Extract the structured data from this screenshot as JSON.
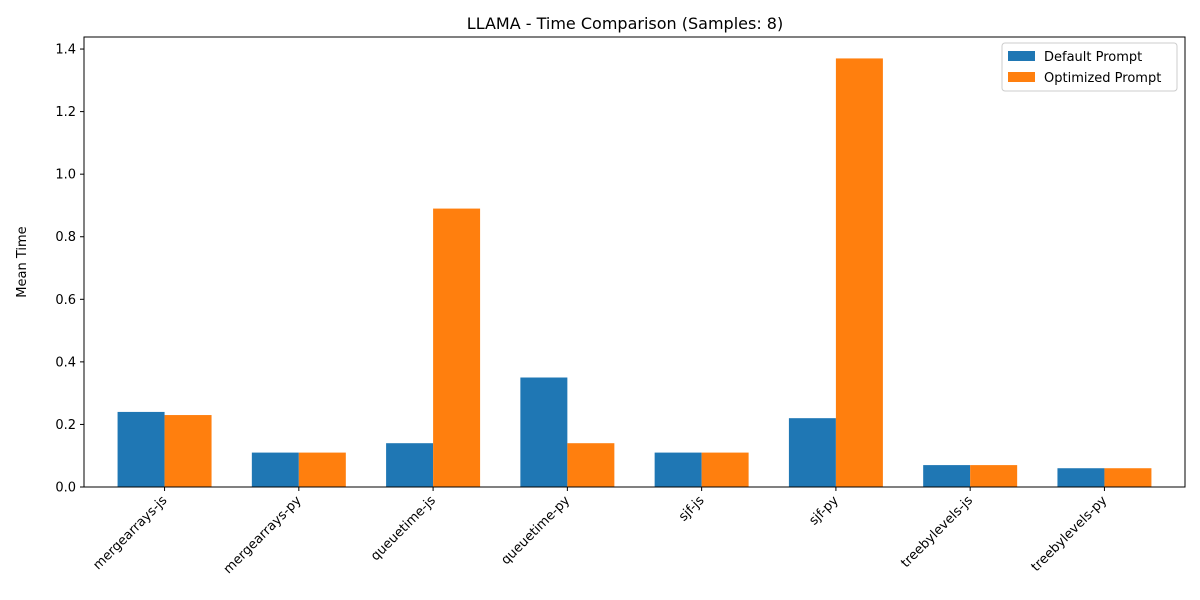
{
  "chart_data": {
    "type": "bar",
    "title": "LLAMA - Time Comparison (Samples: 8)",
    "xlabel": "",
    "ylabel": "Mean Time",
    "categories": [
      "mergearrays-js",
      "mergearrays-py",
      "queuetime-js",
      "queuetime-py",
      "sjf-js",
      "sjf-py",
      "treebylevels-js",
      "treebylevels-py"
    ],
    "series": [
      {
        "name": "Default Prompt",
        "color": "#1f77b4",
        "values": [
          0.24,
          0.11,
          0.14,
          0.35,
          0.11,
          0.22,
          0.07,
          0.06
        ]
      },
      {
        "name": "Optimized Prompt",
        "color": "#ff7f0e",
        "values": [
          0.23,
          0.11,
          0.89,
          0.14,
          0.11,
          1.37,
          0.07,
          0.06
        ]
      }
    ],
    "ylim": [
      0,
      1.4385
    ],
    "yticks": [
      "0.0",
      "0.2",
      "0.4",
      "0.6",
      "0.8",
      "1.0",
      "1.2",
      "1.4"
    ],
    "grid": false,
    "legend_position": "top-right"
  }
}
